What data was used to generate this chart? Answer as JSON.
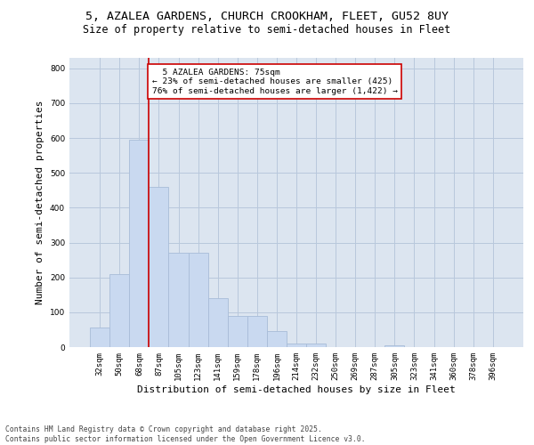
{
  "title_line1": "5, AZALEA GARDENS, CHURCH CROOKHAM, FLEET, GU52 8UY",
  "title_line2": "Size of property relative to semi-detached houses in Fleet",
  "xlabel": "Distribution of semi-detached houses by size in Fleet",
  "ylabel": "Number of semi-detached properties",
  "categories": [
    "32sqm",
    "50sqm",
    "68sqm",
    "87sqm",
    "105sqm",
    "123sqm",
    "141sqm",
    "159sqm",
    "178sqm",
    "196sqm",
    "214sqm",
    "232sqm",
    "250sqm",
    "269sqm",
    "287sqm",
    "305sqm",
    "323sqm",
    "341sqm",
    "360sqm",
    "378sqm",
    "396sqm"
  ],
  "values": [
    55,
    210,
    595,
    460,
    270,
    270,
    140,
    90,
    90,
    45,
    10,
    10,
    0,
    0,
    0,
    5,
    0,
    0,
    0,
    0,
    0
  ],
  "bar_color": "#c9d9f0",
  "bar_edge_color": "#a8bcd8",
  "grid_color": "#b8c8dc",
  "bg_color": "#dce5f0",
  "property_sqm": 75,
  "property_label": "5 AZALEA GARDENS: 75sqm",
  "pct_smaller": 23,
  "count_smaller": 425,
  "pct_larger": 76,
  "count_larger": 1422,
  "annotation_box_color": "#ffffff",
  "annotation_box_edge": "#cc0000",
  "vline_color": "#cc0000",
  "ylim": [
    0,
    830
  ],
  "yticks": [
    0,
    100,
    200,
    300,
    400,
    500,
    600,
    700,
    800
  ],
  "footer_line1": "Contains HM Land Registry data © Crown copyright and database right 2025.",
  "footer_line2": "Contains public sector information licensed under the Open Government Licence v3.0.",
  "title_fontsize": 9.5,
  "subtitle_fontsize": 8.5,
  "tick_fontsize": 6.5,
  "label_fontsize": 8,
  "footer_fontsize": 5.8,
  "annot_fontsize": 6.8
}
